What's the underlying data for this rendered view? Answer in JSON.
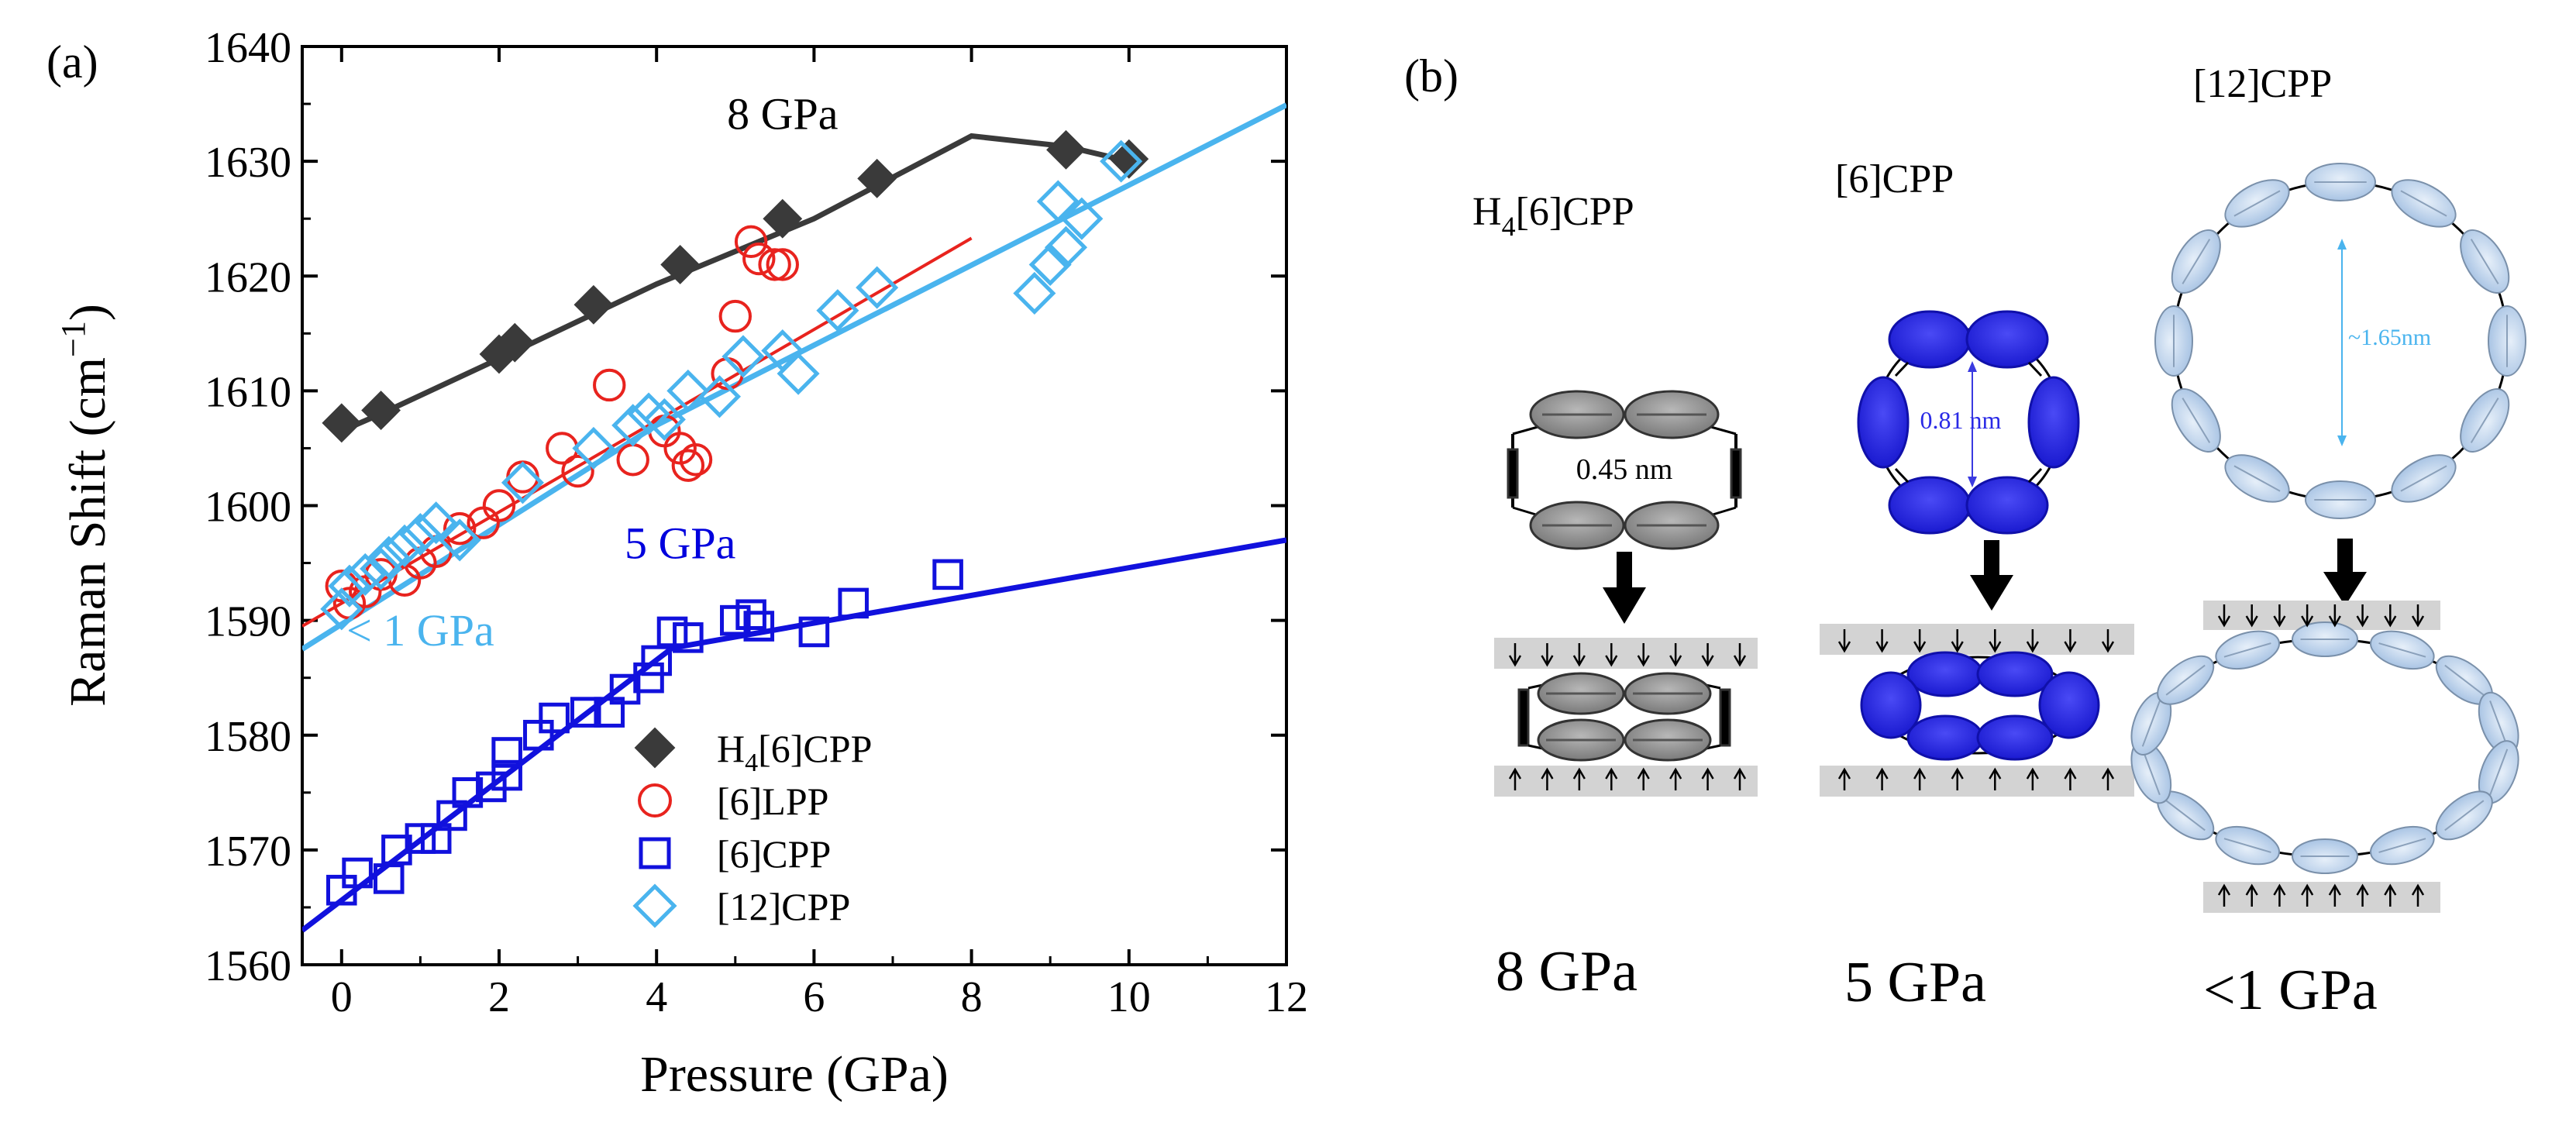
{
  "panel_a": {
    "label": "(a)"
  },
  "panel_b": {
    "label": "(b)",
    "molecules": [
      {
        "name_main": "H",
        "name_sub": "4",
        "name_rest": "[6]CPP",
        "dimension": "0.45 nm",
        "pressure": "8 GPa",
        "color": "#8e8e8e"
      },
      {
        "name_main": "[6]CPP",
        "name_sub": "",
        "name_rest": "",
        "dimension": "0.81 nm",
        "pressure": "5 GPa",
        "color": "#2a2ae6"
      },
      {
        "name_main": "[12]CPP",
        "name_sub": "",
        "name_rest": "",
        "dimension": "~1.65nm",
        "pressure": "<1 GPa",
        "color": "#b9d0ea"
      }
    ]
  },
  "chart_data": {
    "type": "scatter",
    "xlabel": "Pressure (GPa)",
    "ylabel_main": "Raman Shift (cm",
    "ylabel_sup": "−1",
    "ylabel_end": ")",
    "xlim": [
      -0.5,
      12
    ],
    "ylim": [
      1560,
      1640
    ],
    "xticks": [
      0,
      2,
      4,
      6,
      8,
      10,
      12
    ],
    "yticks": [
      1560,
      1570,
      1580,
      1590,
      1600,
      1610,
      1620,
      1630,
      1640
    ],
    "annotations": [
      {
        "text": "8 GPa",
        "x": 5.6,
        "y": 1632.8,
        "color": "#000000"
      },
      {
        "text": "5 GPa",
        "x": 4.3,
        "y": 1595.4,
        "color": "#0000dd"
      },
      {
        "text": "< 1 GPa",
        "x": 1.0,
        "y": 1587.8,
        "color": "#4ab4ee"
      }
    ],
    "series": [
      {
        "name": "H4[6]CPP",
        "legend_main": "H",
        "legend_sub": "4",
        "legend_rest": "[6]CPP",
        "marker": "diamond-filled",
        "color": "#3a3a3a",
        "points": [
          [
            0,
            1607.2
          ],
          [
            0.5,
            1608.3
          ],
          [
            2.0,
            1613.2
          ],
          [
            2.2,
            1614.2
          ],
          [
            3.2,
            1617.5
          ],
          [
            4.3,
            1621.0
          ],
          [
            5.6,
            1625.0
          ],
          [
            6.8,
            1628.5
          ],
          [
            9.2,
            1631.0
          ],
          [
            10.0,
            1630.2
          ]
        ],
        "fit": [
          [
            0,
            1606.5
          ],
          [
            0.5,
            1608.0
          ],
          [
            2.0,
            1612.8
          ],
          [
            4.0,
            1619.3
          ],
          [
            6.0,
            1625.0
          ],
          [
            8.0,
            1632.2
          ],
          [
            9.2,
            1631.3
          ],
          [
            10.0,
            1630.0
          ]
        ]
      },
      {
        "name": "[6]LPP",
        "legend_main": "[6]LPP",
        "legend_sub": "",
        "legend_rest": "",
        "marker": "circle-open",
        "color": "#e8231e",
        "points": [
          [
            0,
            1593.0
          ],
          [
            0.1,
            1591.5
          ],
          [
            0.3,
            1592.5
          ],
          [
            0.5,
            1594.0
          ],
          [
            0.8,
            1593.5
          ],
          [
            1.0,
            1595.0
          ],
          [
            1.2,
            1596.0
          ],
          [
            1.5,
            1598.0
          ],
          [
            1.8,
            1598.5
          ],
          [
            2.0,
            1600.0
          ],
          [
            2.3,
            1602.5
          ],
          [
            2.8,
            1605.0
          ],
          [
            3.0,
            1603.0
          ],
          [
            3.4,
            1610.5
          ],
          [
            3.7,
            1604.0
          ],
          [
            4.1,
            1606.5
          ],
          [
            4.3,
            1605.0
          ],
          [
            4.4,
            1603.5
          ],
          [
            4.5,
            1604.0
          ],
          [
            4.9,
            1611.5
          ],
          [
            5.0,
            1616.5
          ],
          [
            5.2,
            1623.0
          ],
          [
            5.3,
            1621.5
          ],
          [
            5.5,
            1621.0
          ],
          [
            5.6,
            1621.0
          ]
        ],
        "fit": [
          [
            -0.5,
            1589.5
          ],
          [
            8.0,
            1623.3
          ]
        ]
      },
      {
        "name": "[6]CPP",
        "legend_main": "[6]CPP",
        "legend_sub": "",
        "legend_rest": "",
        "marker": "square-open",
        "color": "#1111dd",
        "points": [
          [
            0,
            1566.5
          ],
          [
            0.2,
            1568.0
          ],
          [
            0.6,
            1567.5
          ],
          [
            0.7,
            1570.0
          ],
          [
            1.0,
            1571.0
          ],
          [
            1.2,
            1571.0
          ],
          [
            1.4,
            1573.0
          ],
          [
            1.6,
            1575.0
          ],
          [
            1.9,
            1575.5
          ],
          [
            2.1,
            1576.5
          ],
          [
            2.1,
            1578.5
          ],
          [
            2.5,
            1580.0
          ],
          [
            2.7,
            1581.5
          ],
          [
            3.1,
            1582.0
          ],
          [
            3.4,
            1582.0
          ],
          [
            3.6,
            1584.0
          ],
          [
            3.9,
            1585.0
          ],
          [
            4.0,
            1586.5
          ],
          [
            4.2,
            1589.0
          ],
          [
            4.4,
            1588.5
          ],
          [
            5.0,
            1590.0
          ],
          [
            5.2,
            1590.5
          ],
          [
            5.3,
            1589.5
          ],
          [
            6.0,
            1589.0
          ],
          [
            6.5,
            1591.5
          ],
          [
            7.7,
            1594.0
          ]
        ],
        "fit": [
          [
            -0.5,
            1563.0
          ],
          [
            4.2,
            1587.6
          ],
          [
            12.0,
            1597.0
          ]
        ]
      },
      {
        "name": "[12]CPP",
        "legend_main": "[12]CPP",
        "legend_sub": "",
        "legend_rest": "",
        "marker": "diamond-open",
        "color": "#4ab4ee",
        "points": [
          [
            0,
            1591.0
          ],
          [
            0.1,
            1593.0
          ],
          [
            0.3,
            1594.0
          ],
          [
            0.5,
            1594.5
          ],
          [
            0.6,
            1595.5
          ],
          [
            0.8,
            1596.5
          ],
          [
            1.0,
            1597.5
          ],
          [
            1.2,
            1598.5
          ],
          [
            1.5,
            1597.0
          ],
          [
            2.3,
            1602.0
          ],
          [
            3.2,
            1605.0
          ],
          [
            3.7,
            1607.0
          ],
          [
            3.9,
            1608.0
          ],
          [
            4.1,
            1607.5
          ],
          [
            4.4,
            1610.0
          ],
          [
            4.8,
            1609.5
          ],
          [
            5.1,
            1613.0
          ],
          [
            5.6,
            1613.5
          ],
          [
            5.8,
            1611.5
          ],
          [
            6.3,
            1617.0
          ],
          [
            6.8,
            1619.0
          ],
          [
            8.8,
            1618.5
          ],
          [
            9.0,
            1621.0
          ],
          [
            9.2,
            1622.5
          ],
          [
            9.1,
            1626.5
          ],
          [
            9.4,
            1625.0
          ],
          [
            9.9,
            1630.0
          ]
        ],
        "fit": [
          [
            -0.5,
            1587.5
          ],
          [
            4.0,
            1607.0
          ],
          [
            12.0,
            1634.9
          ]
        ]
      }
    ]
  }
}
